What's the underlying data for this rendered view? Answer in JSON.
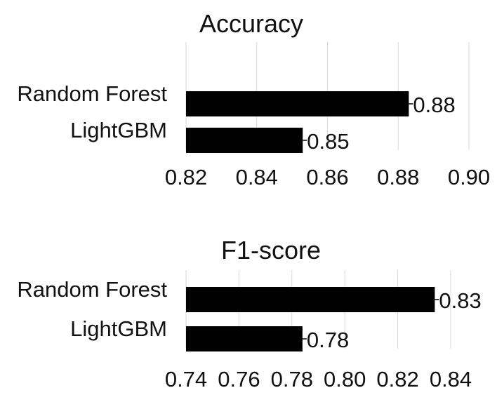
{
  "chart_data": [
    {
      "type": "bar",
      "orientation": "horizontal",
      "title": "Accuracy",
      "categories": [
        "Random Forest",
        "LightGBM"
      ],
      "values": [
        0.883,
        0.853
      ],
      "value_labels": [
        "0.88",
        "0.85"
      ],
      "xlim": [
        0.82,
        0.9
      ],
      "xticks": [
        0.82,
        0.84,
        0.86,
        0.88,
        0.9
      ],
      "tick_labels": [
        "0.82",
        "0.84",
        "0.86",
        "0.88",
        "0.90"
      ],
      "grid": "vertical",
      "legend": "none",
      "bar_color": "#000000"
    },
    {
      "type": "bar",
      "orientation": "horizontal",
      "title": "F1-score",
      "categories": [
        "Random Forest",
        "LightGBM"
      ],
      "values": [
        0.834,
        0.784
      ],
      "value_labels": [
        "0.83",
        "0.78"
      ],
      "xlim": [
        0.74,
        0.84
      ],
      "xticks": [
        0.74,
        0.76,
        0.78,
        0.8,
        0.82,
        0.84
      ],
      "tick_labels": [
        "0.74",
        "0.76",
        "0.78",
        "0.80",
        "0.82",
        "0.84"
      ],
      "grid": "vertical",
      "legend": "none",
      "bar_color": "#000000"
    }
  ]
}
